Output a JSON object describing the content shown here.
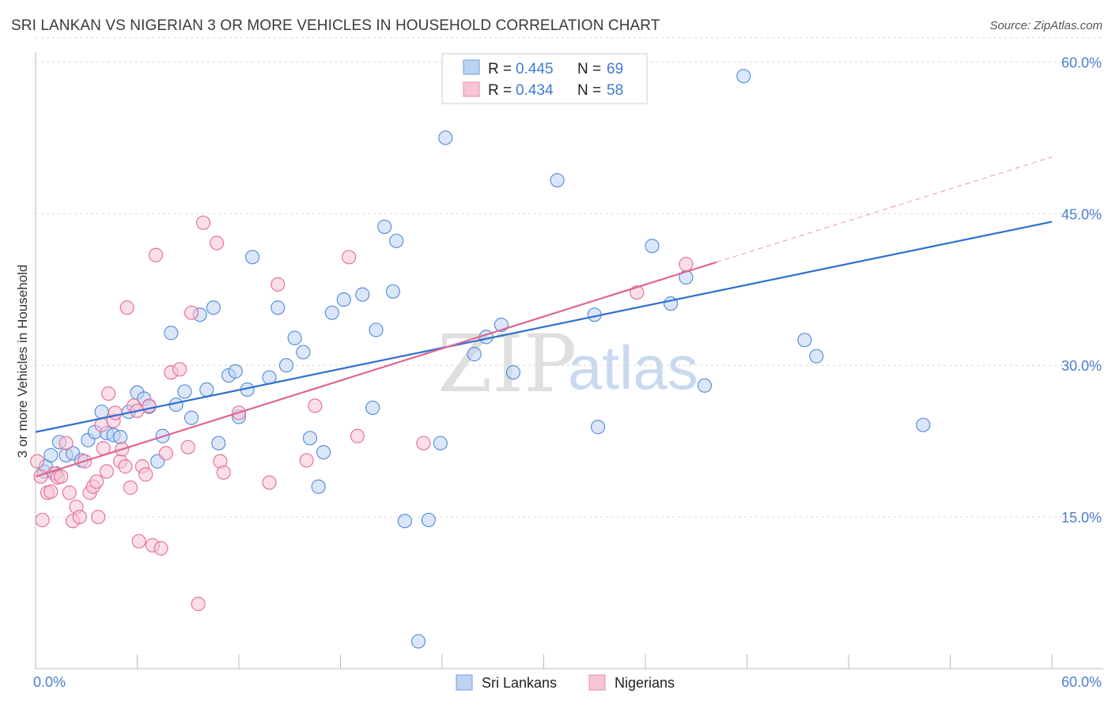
{
  "header": {
    "title": "SRI LANKAN VS NIGERIAN 3 OR MORE VEHICLES IN HOUSEHOLD CORRELATION CHART",
    "source": "Source: ZipAtlas.com"
  },
  "legend": {
    "r_label": "R = ",
    "n_label": "N = ",
    "items": [
      {
        "r": "0.445",
        "n": "69"
      },
      {
        "r": "0.434",
        "n": "58"
      }
    ]
  },
  "watermark": {
    "part1": "ZIP",
    "part2": "atlas"
  },
  "chart_data": {
    "type": "scatter",
    "ylabel": "3 or more Vehicles in Household",
    "xlim": [
      0,
      60
    ],
    "ylim": [
      0,
      63
    ],
    "x_tick_labels": [
      "0.0%",
      "60.0%"
    ],
    "y_ticks": [
      15,
      30,
      45,
      60
    ],
    "y_tick_labels": [
      "15.0%",
      "30.0%",
      "45.0%",
      "60.0%"
    ],
    "grid": true,
    "colors": {
      "sri": "#5b8fdc",
      "sri_fill": "#bdd3f3",
      "nig": "#e6739d",
      "nig_fill": "#f7c4d6",
      "sri_line": "#2f6fd0",
      "nig_line": "#e0668f"
    },
    "series": [
      {
        "name": "Sri Lankans",
        "trend": {
          "x": [
            0,
            60
          ],
          "y": [
            23.4,
            44.2
          ]
        },
        "points": [
          [
            0.5,
            19.5
          ],
          [
            0.6,
            20.0
          ],
          [
            0.9,
            21.1
          ],
          [
            1.2,
            19.3
          ],
          [
            1.4,
            22.4
          ],
          [
            1.8,
            21.1
          ],
          [
            2.2,
            21.3
          ],
          [
            2.7,
            20.6
          ],
          [
            3.1,
            22.6
          ],
          [
            3.5,
            23.4
          ],
          [
            3.9,
            25.4
          ],
          [
            4.2,
            23.3
          ],
          [
            4.6,
            23.1
          ],
          [
            5.0,
            22.9
          ],
          [
            5.5,
            25.4
          ],
          [
            6.0,
            27.3
          ],
          [
            6.4,
            26.7
          ],
          [
            6.7,
            25.9
          ],
          [
            7.2,
            20.5
          ],
          [
            7.5,
            23.0
          ],
          [
            8.0,
            33.2
          ],
          [
            8.3,
            26.1
          ],
          [
            8.8,
            27.4
          ],
          [
            9.2,
            24.8
          ],
          [
            9.7,
            35.0
          ],
          [
            10.1,
            27.6
          ],
          [
            10.5,
            35.7
          ],
          [
            10.8,
            22.3
          ],
          [
            11.4,
            29.0
          ],
          [
            11.8,
            29.4
          ],
          [
            12.0,
            24.9
          ],
          [
            12.5,
            27.6
          ],
          [
            12.8,
            40.7
          ],
          [
            13.8,
            28.8
          ],
          [
            14.3,
            35.7
          ],
          [
            14.8,
            30.0
          ],
          [
            15.3,
            32.7
          ],
          [
            15.8,
            31.3
          ],
          [
            16.2,
            22.8
          ],
          [
            16.7,
            18.0
          ],
          [
            17.0,
            21.4
          ],
          [
            17.5,
            35.2
          ],
          [
            18.2,
            36.5
          ],
          [
            19.3,
            37.0
          ],
          [
            19.9,
            25.8
          ],
          [
            20.1,
            33.5
          ],
          [
            20.6,
            43.7
          ],
          [
            21.1,
            37.3
          ],
          [
            21.3,
            42.3
          ],
          [
            21.8,
            14.6
          ],
          [
            22.6,
            2.7
          ],
          [
            23.2,
            14.7
          ],
          [
            23.9,
            22.3
          ],
          [
            24.2,
            52.5
          ],
          [
            25.9,
            31.1
          ],
          [
            26.6,
            32.8
          ],
          [
            27.5,
            34.0
          ],
          [
            28.2,
            29.3
          ],
          [
            30.8,
            48.3
          ],
          [
            33.2,
            23.9
          ],
          [
            33.0,
            35.0
          ],
          [
            36.4,
            41.8
          ],
          [
            37.5,
            36.1
          ],
          [
            38.4,
            38.7
          ],
          [
            39.5,
            28.0
          ],
          [
            41.8,
            58.6
          ],
          [
            45.4,
            32.5
          ],
          [
            46.1,
            30.9
          ],
          [
            52.4,
            24.1
          ]
        ]
      },
      {
        "name": "Nigerians",
        "trend": {
          "x": [
            0,
            40.2
          ],
          "y": [
            19.0,
            40.2
          ]
        },
        "trend_dashed": {
          "x": [
            40.2,
            60
          ],
          "y": [
            40.2,
            50.6
          ]
        },
        "points": [
          [
            0.1,
            20.5
          ],
          [
            0.3,
            19.0
          ],
          [
            0.4,
            14.7
          ],
          [
            0.7,
            17.4
          ],
          [
            0.9,
            17.5
          ],
          [
            1.1,
            19.3
          ],
          [
            1.3,
            18.9
          ],
          [
            1.5,
            19.0
          ],
          [
            1.8,
            22.3
          ],
          [
            2.0,
            17.4
          ],
          [
            2.2,
            14.6
          ],
          [
            2.4,
            16.0
          ],
          [
            2.6,
            15.0
          ],
          [
            2.9,
            20.5
          ],
          [
            3.2,
            17.4
          ],
          [
            3.4,
            18.0
          ],
          [
            3.6,
            18.5
          ],
          [
            3.7,
            15.0
          ],
          [
            3.9,
            24.1
          ],
          [
            4.0,
            21.8
          ],
          [
            4.2,
            19.5
          ],
          [
            4.3,
            27.2
          ],
          [
            4.6,
            24.5
          ],
          [
            4.7,
            25.3
          ],
          [
            5.0,
            20.5
          ],
          [
            5.1,
            21.7
          ],
          [
            5.3,
            20.0
          ],
          [
            5.4,
            35.7
          ],
          [
            5.6,
            17.9
          ],
          [
            5.8,
            26.0
          ],
          [
            6.0,
            25.5
          ],
          [
            6.1,
            12.6
          ],
          [
            6.3,
            20.0
          ],
          [
            6.5,
            19.2
          ],
          [
            6.7,
            26.0
          ],
          [
            6.9,
            12.2
          ],
          [
            7.1,
            40.9
          ],
          [
            7.4,
            11.9
          ],
          [
            7.7,
            21.3
          ],
          [
            8.0,
            29.3
          ],
          [
            8.5,
            29.6
          ],
          [
            9.0,
            21.9
          ],
          [
            9.2,
            35.2
          ],
          [
            9.6,
            6.4
          ],
          [
            9.9,
            44.1
          ],
          [
            10.7,
            42.1
          ],
          [
            10.9,
            20.5
          ],
          [
            11.1,
            19.4
          ],
          [
            12.0,
            25.3
          ],
          [
            13.8,
            18.4
          ],
          [
            14.3,
            38.0
          ],
          [
            16.0,
            20.6
          ],
          [
            16.5,
            26.0
          ],
          [
            18.5,
            40.7
          ],
          [
            19.0,
            23.0
          ],
          [
            22.9,
            22.3
          ],
          [
            35.5,
            37.2
          ],
          [
            38.4,
            40.0
          ]
        ]
      }
    ]
  },
  "bottom_legend": {
    "items": [
      "Sri Lankans",
      "Nigerians"
    ]
  }
}
